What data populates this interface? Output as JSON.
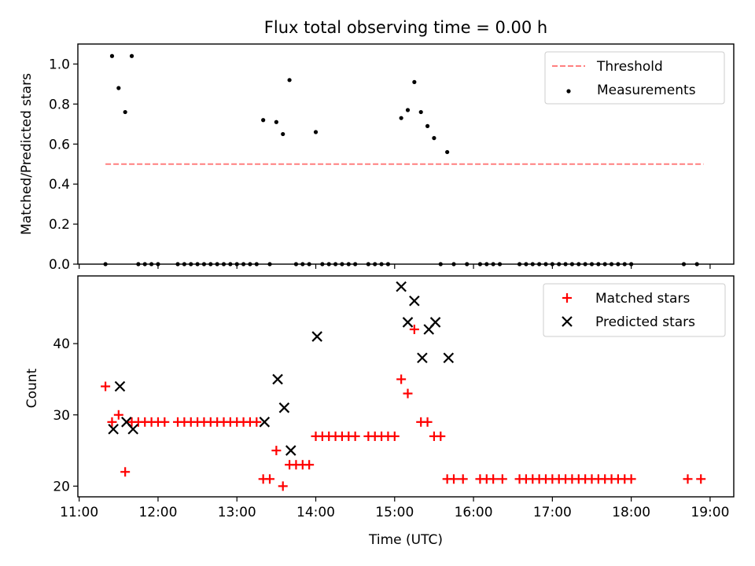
{
  "chart_data": [
    {
      "type": "scatter",
      "title": "Flux total observing time = 0.00 h",
      "ylabel": "Matched/Predicted stars",
      "xlabel": "",
      "ylim": [
        0,
        1.1
      ],
      "yticks": [
        "0.0",
        "0.2",
        "0.4",
        "0.6",
        "0.8",
        "1.0"
      ],
      "grid": false,
      "legend_position": "top-right",
      "threshold": {
        "name": "Threshold",
        "value": 0.5,
        "x_range": [
          "11:20",
          "18:55"
        ],
        "color": "#ff7f7f",
        "style": "dashed"
      },
      "series": [
        {
          "name": "Measurements",
          "color": "#000000",
          "marker": "dot",
          "points": [
            [
              "11:20",
              0.0
            ],
            [
              "11:25",
              1.04
            ],
            [
              "11:30",
              0.88
            ],
            [
              "11:35",
              0.76
            ],
            [
              "11:40",
              1.04
            ],
            [
              "11:45",
              0.0
            ],
            [
              "11:50",
              0.0
            ],
            [
              "11:55",
              0.0
            ],
            [
              "12:00",
              0.0
            ],
            [
              "12:15",
              0.0
            ],
            [
              "12:20",
              0.0
            ],
            [
              "12:25",
              0.0
            ],
            [
              "12:30",
              0.0
            ],
            [
              "12:35",
              0.0
            ],
            [
              "12:40",
              0.0
            ],
            [
              "12:45",
              0.0
            ],
            [
              "12:50",
              0.0
            ],
            [
              "12:55",
              0.0
            ],
            [
              "13:00",
              0.0
            ],
            [
              "13:05",
              0.0
            ],
            [
              "13:10",
              0.0
            ],
            [
              "13:15",
              0.0
            ],
            [
              "13:20",
              0.72
            ],
            [
              "13:25",
              0.0
            ],
            [
              "13:30",
              0.71
            ],
            [
              "13:35",
              0.65
            ],
            [
              "13:40",
              0.92
            ],
            [
              "13:45",
              0.0
            ],
            [
              "13:50",
              0.0
            ],
            [
              "13:55",
              0.0
            ],
            [
              "14:00",
              0.66
            ],
            [
              "14:05",
              0.0
            ],
            [
              "14:10",
              0.0
            ],
            [
              "14:15",
              0.0
            ],
            [
              "14:20",
              0.0
            ],
            [
              "14:25",
              0.0
            ],
            [
              "14:30",
              0.0
            ],
            [
              "14:40",
              0.0
            ],
            [
              "14:45",
              0.0
            ],
            [
              "14:50",
              0.0
            ],
            [
              "14:55",
              0.0
            ],
            [
              "15:05",
              0.73
            ],
            [
              "15:10",
              0.77
            ],
            [
              "15:15",
              0.91
            ],
            [
              "15:20",
              0.76
            ],
            [
              "15:25",
              0.69
            ],
            [
              "15:30",
              0.63
            ],
            [
              "15:40",
              0.56
            ],
            [
              "15:35",
              0.0
            ],
            [
              "15:45",
              0.0
            ],
            [
              "15:55",
              0.0
            ],
            [
              "16:05",
              0.0
            ],
            [
              "16:10",
              0.0
            ],
            [
              "16:15",
              0.0
            ],
            [
              "16:20",
              0.0
            ],
            [
              "16:35",
              0.0
            ],
            [
              "16:40",
              0.0
            ],
            [
              "16:45",
              0.0
            ],
            [
              "16:50",
              0.0
            ],
            [
              "16:55",
              0.0
            ],
            [
              "17:00",
              0.0
            ],
            [
              "17:05",
              0.0
            ],
            [
              "17:10",
              0.0
            ],
            [
              "17:15",
              0.0
            ],
            [
              "17:20",
              0.0
            ],
            [
              "17:25",
              0.0
            ],
            [
              "17:30",
              0.0
            ],
            [
              "17:35",
              0.0
            ],
            [
              "17:40",
              0.0
            ],
            [
              "17:45",
              0.0
            ],
            [
              "17:50",
              0.0
            ],
            [
              "17:55",
              0.0
            ],
            [
              "18:00",
              0.0
            ],
            [
              "18:40",
              0.0
            ],
            [
              "18:50",
              0.0
            ]
          ]
        }
      ]
    },
    {
      "type": "scatter",
      "title": "",
      "ylabel": "Count",
      "xlabel": "Time (UTC)",
      "ylim": [
        18.5,
        49.5
      ],
      "yticks": [
        "20",
        "30",
        "40"
      ],
      "xlim": [
        "10:59",
        "19:18"
      ],
      "xticks": [
        "11:00",
        "12:00",
        "13:00",
        "14:00",
        "15:00",
        "16:00",
        "17:00",
        "18:00",
        "19:00"
      ],
      "grid": false,
      "legend_position": "top-right",
      "series": [
        {
          "name": "Matched stars",
          "color": "#ff0000",
          "marker": "plus",
          "points": [
            [
              "11:20",
              34
            ],
            [
              "11:25",
              29
            ],
            [
              "11:30",
              30
            ],
            [
              "11:35",
              22
            ],
            [
              "11:40",
              29
            ],
            [
              "11:45",
              29
            ],
            [
              "11:50",
              29
            ],
            [
              "11:55",
              29
            ],
            [
              "12:00",
              29
            ],
            [
              "12:05",
              29
            ],
            [
              "12:15",
              29
            ],
            [
              "12:20",
              29
            ],
            [
              "12:25",
              29
            ],
            [
              "12:30",
              29
            ],
            [
              "12:35",
              29
            ],
            [
              "12:40",
              29
            ],
            [
              "12:45",
              29
            ],
            [
              "12:50",
              29
            ],
            [
              "12:55",
              29
            ],
            [
              "13:00",
              29
            ],
            [
              "13:05",
              29
            ],
            [
              "13:10",
              29
            ],
            [
              "13:15",
              29
            ],
            [
              "13:20",
              21
            ],
            [
              "13:25",
              21
            ],
            [
              "13:30",
              25
            ],
            [
              "13:35",
              20
            ],
            [
              "13:40",
              23
            ],
            [
              "13:45",
              23
            ],
            [
              "13:50",
              23
            ],
            [
              "13:55",
              23
            ],
            [
              "14:00",
              27
            ],
            [
              "14:05",
              27
            ],
            [
              "14:10",
              27
            ],
            [
              "14:15",
              27
            ],
            [
              "14:20",
              27
            ],
            [
              "14:25",
              27
            ],
            [
              "14:30",
              27
            ],
            [
              "14:40",
              27
            ],
            [
              "14:45",
              27
            ],
            [
              "14:50",
              27
            ],
            [
              "14:55",
              27
            ],
            [
              "15:00",
              27
            ],
            [
              "15:05",
              35
            ],
            [
              "15:10",
              33
            ],
            [
              "15:15",
              42
            ],
            [
              "15:20",
              29
            ],
            [
              "15:25",
              29
            ],
            [
              "15:30",
              27
            ],
            [
              "15:35",
              27
            ],
            [
              "15:40",
              21
            ],
            [
              "15:45",
              21
            ],
            [
              "15:52",
              21
            ],
            [
              "16:05",
              21
            ],
            [
              "16:10",
              21
            ],
            [
              "16:15",
              21
            ],
            [
              "16:22",
              21
            ],
            [
              "16:35",
              21
            ],
            [
              "16:40",
              21
            ],
            [
              "16:45",
              21
            ],
            [
              "16:50",
              21
            ],
            [
              "16:55",
              21
            ],
            [
              "17:00",
              21
            ],
            [
              "17:05",
              21
            ],
            [
              "17:10",
              21
            ],
            [
              "17:15",
              21
            ],
            [
              "17:20",
              21
            ],
            [
              "17:25",
              21
            ],
            [
              "17:30",
              21
            ],
            [
              "17:35",
              21
            ],
            [
              "17:40",
              21
            ],
            [
              "17:45",
              21
            ],
            [
              "17:50",
              21
            ],
            [
              "17:55",
              21
            ],
            [
              "18:00",
              21
            ],
            [
              "18:43",
              21
            ],
            [
              "18:53",
              21
            ]
          ]
        },
        {
          "name": "Predicted stars",
          "color": "#000000",
          "marker": "x",
          "points": [
            [
              "11:26",
              28
            ],
            [
              "11:31",
              34
            ],
            [
              "11:36",
              29
            ],
            [
              "11:41",
              28
            ],
            [
              "13:21",
              29
            ],
            [
              "13:31",
              35
            ],
            [
              "13:36",
              31
            ],
            [
              "13:41",
              25
            ],
            [
              "14:01",
              41
            ],
            [
              "15:05",
              48
            ],
            [
              "15:10",
              43
            ],
            [
              "15:15",
              46
            ],
            [
              "15:21",
              38
            ],
            [
              "15:26",
              42
            ],
            [
              "15:31",
              43
            ],
            [
              "15:41",
              38
            ]
          ]
        }
      ]
    }
  ]
}
